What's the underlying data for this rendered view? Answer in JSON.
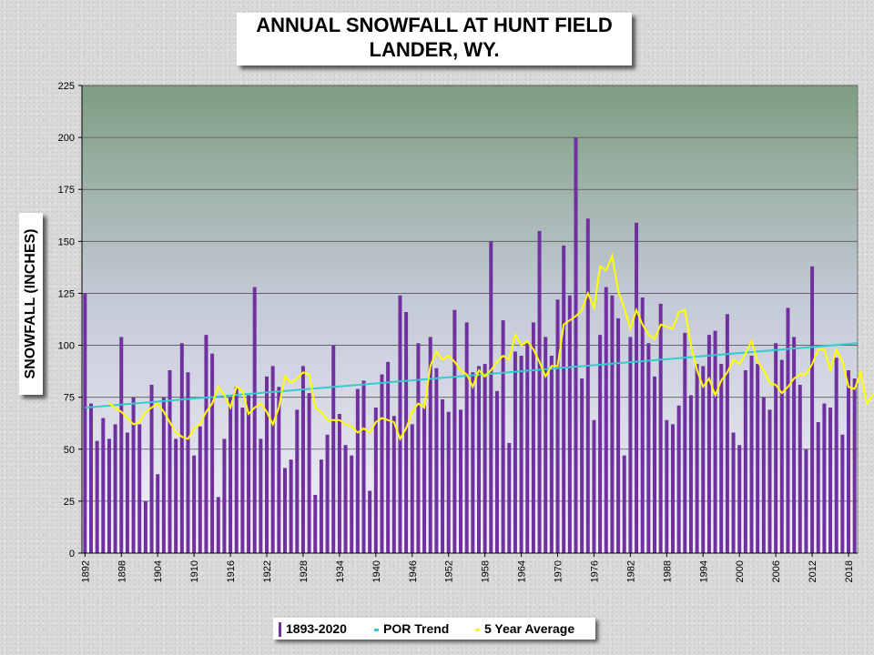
{
  "chart_data": {
    "type": "bar",
    "title": [
      "ANNUAL SNOWFALL AT HUNT FIELD",
      "LANDER, WY."
    ],
    "ylabel": "SNOWFALL (INCHES)",
    "xlabel": "",
    "ylim": [
      0,
      225
    ],
    "yticks": [
      0,
      25,
      50,
      75,
      100,
      125,
      150,
      175,
      200,
      225
    ],
    "xticks": [
      "1892",
      "1898",
      "1904",
      "1910",
      "1916",
      "1922",
      "1928",
      "1934",
      "1940",
      "1946",
      "1952",
      "1958",
      "1964",
      "1970",
      "1976",
      "1982",
      "1988",
      "1994",
      "2000",
      "2006",
      "2012",
      "2018"
    ],
    "x_start_year": 1892,
    "grid": true,
    "legend_position": "bottom",
    "series": [
      {
        "name": "1893-2020",
        "kind": "bar",
        "color": "#7030a0",
        "values": [
          125,
          72,
          54,
          65,
          55,
          62,
          104,
          58,
          75,
          62,
          25,
          81,
          38,
          75,
          88,
          55,
          101,
          87,
          47,
          61,
          105,
          96,
          27,
          55,
          75,
          80,
          70,
          76,
          128,
          55,
          85,
          90,
          80,
          41,
          45,
          69,
          90,
          77,
          28,
          45,
          57,
          100,
          67,
          52,
          47,
          79,
          83,
          30,
          70,
          86,
          92,
          66,
          124,
          116,
          62,
          101,
          71,
          104,
          89,
          74,
          68,
          117,
          69,
          111,
          87,
          90,
          91,
          150,
          78,
          112,
          53,
          97,
          95,
          101,
          111,
          155,
          104,
          95,
          122,
          148,
          124,
          200,
          84,
          161,
          64,
          105,
          128,
          124,
          113,
          47,
          104,
          159,
          123,
          101,
          85,
          120,
          64,
          62,
          71,
          106,
          76,
          91,
          90,
          105,
          107,
          91,
          115,
          58,
          52,
          88,
          95,
          91,
          75,
          69,
          101,
          93,
          118,
          104,
          81,
          50,
          138,
          63,
          72,
          70,
          94,
          57,
          88,
          84
        ]
      },
      {
        "name": "POR Trend",
        "kind": "line",
        "color": "#33cccc",
        "start": 70,
        "end": 101
      },
      {
        "name": "5 Year Average",
        "kind": "line",
        "color": "#ffff00",
        "start_index": 4,
        "values": [
          72,
          70,
          68,
          65,
          62,
          63,
          68,
          70,
          72,
          68,
          63,
          58,
          56,
          55,
          60,
          62,
          68,
          72,
          80,
          76,
          70,
          80,
          78,
          67,
          70,
          72,
          68,
          62,
          70,
          85,
          82,
          84,
          87,
          86,
          70,
          68,
          64,
          64,
          64,
          62,
          61,
          58,
          60,
          58,
          63,
          65,
          64,
          63,
          55,
          60,
          68,
          72,
          70,
          90,
          97,
          93,
          95,
          92,
          88,
          86,
          80,
          88,
          85,
          88,
          92,
          95,
          93,
          105,
          100,
          102,
          98,
          92,
          85,
          90,
          90,
          110,
          112,
          114,
          117,
          125,
          118,
          138,
          136,
          143,
          126,
          118,
          108,
          117,
          110,
          105,
          103,
          110,
          109,
          108,
          116,
          117,
          100,
          88,
          80,
          84,
          76,
          83,
          87,
          93,
          91,
          96,
          102,
          92,
          88,
          82,
          81,
          77,
          80,
          84,
          86,
          86,
          91,
          98,
          98,
          88,
          98,
          92,
          80,
          79,
          87,
          72,
          76,
          79
        ]
      }
    ],
    "legend": [
      "1893-2020",
      "POR Trend",
      "5 Year Average"
    ]
  }
}
